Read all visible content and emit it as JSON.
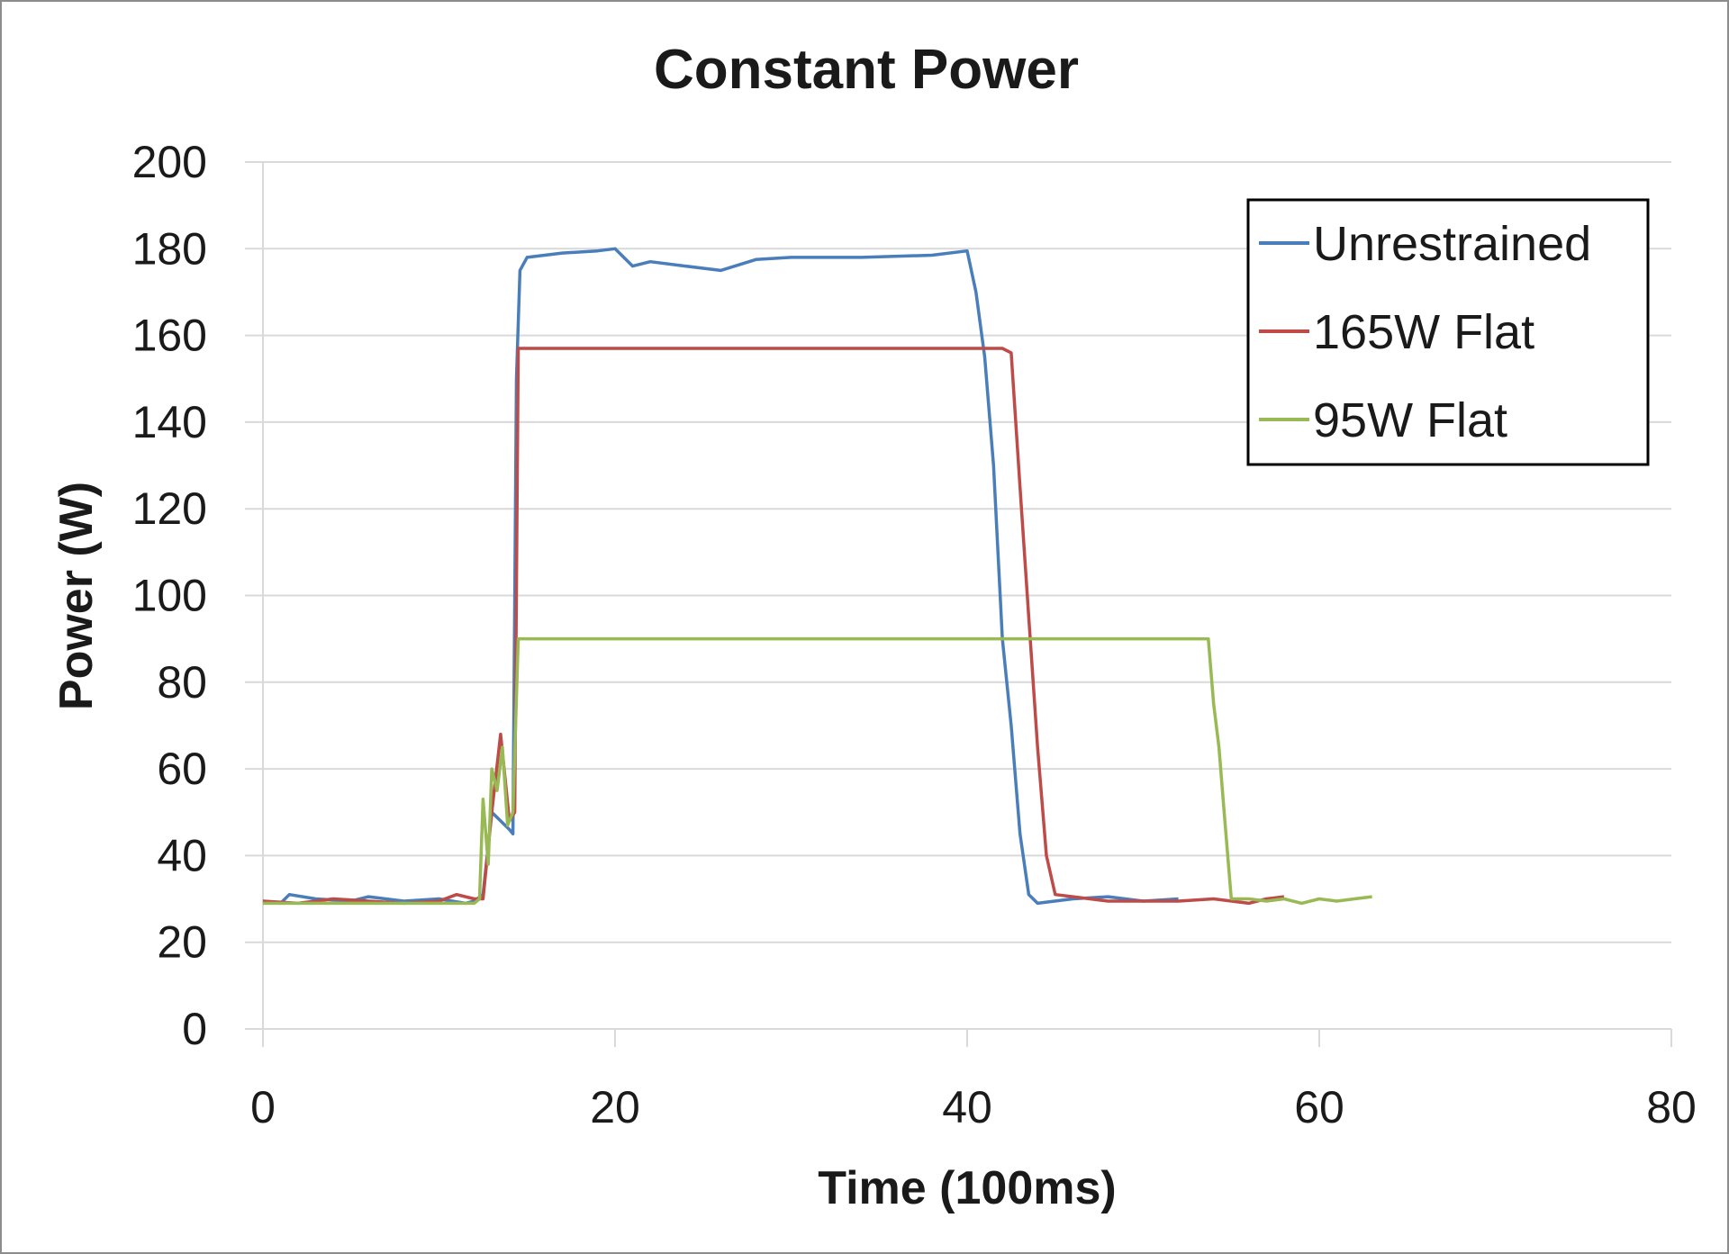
{
  "chart_data": {
    "type": "line",
    "title": "Constant Power",
    "xlabel": "Time (100ms)",
    "ylabel": "Power (W)",
    "xlim": [
      0,
      80
    ],
    "ylim": [
      0,
      200
    ],
    "xticks": [
      0,
      20,
      40,
      60,
      80
    ],
    "yticks": [
      0,
      20,
      40,
      60,
      80,
      100,
      120,
      140,
      160,
      180,
      200
    ],
    "grid": "horizontal",
    "legend_position": "top-right",
    "series": [
      {
        "name": "Unrestrained",
        "color": "#4a7ebb",
        "points": [
          [
            0,
            29.5
          ],
          [
            1,
            29
          ],
          [
            1.5,
            31
          ],
          [
            3,
            30
          ],
          [
            5,
            29.5
          ],
          [
            6,
            30.5
          ],
          [
            8,
            29.5
          ],
          [
            10,
            30
          ],
          [
            11.5,
            29
          ],
          [
            12,
            29.5
          ],
          [
            12.5,
            31
          ],
          [
            13,
            50
          ],
          [
            13.5,
            48
          ],
          [
            14,
            46
          ],
          [
            14.2,
            45
          ],
          [
            14.4,
            150
          ],
          [
            14.6,
            175
          ],
          [
            15,
            178
          ],
          [
            17,
            179
          ],
          [
            19,
            179.5
          ],
          [
            20,
            180
          ],
          [
            21,
            176
          ],
          [
            22,
            177
          ],
          [
            24,
            176
          ],
          [
            26,
            175
          ],
          [
            28,
            177.5
          ],
          [
            30,
            178
          ],
          [
            34,
            178
          ],
          [
            38,
            178.5
          ],
          [
            40,
            179.5
          ],
          [
            40.5,
            170
          ],
          [
            41,
            155
          ],
          [
            41.5,
            130
          ],
          [
            42,
            90
          ],
          [
            42.5,
            70
          ],
          [
            43,
            45
          ],
          [
            43.5,
            31
          ],
          [
            44,
            29
          ],
          [
            46,
            30
          ],
          [
            48,
            30.5
          ],
          [
            50,
            29.5
          ],
          [
            52,
            30
          ]
        ]
      },
      {
        "name": "165W Flat",
        "color": "#be4b48",
        "points": [
          [
            0,
            29.5
          ],
          [
            2,
            29
          ],
          [
            4,
            30
          ],
          [
            6,
            29.5
          ],
          [
            8,
            29
          ],
          [
            10,
            29.5
          ],
          [
            11,
            31
          ],
          [
            12,
            30
          ],
          [
            12.5,
            30
          ],
          [
            13,
            50
          ],
          [
            13.5,
            68
          ],
          [
            14,
            48
          ],
          [
            14.3,
            50
          ],
          [
            14.5,
            157
          ],
          [
            16,
            157
          ],
          [
            20,
            157
          ],
          [
            25,
            157
          ],
          [
            30,
            157
          ],
          [
            35,
            157
          ],
          [
            40,
            157
          ],
          [
            42,
            157
          ],
          [
            42.5,
            156
          ],
          [
            43,
            125
          ],
          [
            43.5,
            95
          ],
          [
            44,
            65
          ],
          [
            44.5,
            40
          ],
          [
            45,
            31
          ],
          [
            46,
            30.5
          ],
          [
            48,
            29.5
          ],
          [
            50,
            29.5
          ],
          [
            52,
            29.5
          ],
          [
            54,
            30
          ],
          [
            56,
            29
          ],
          [
            57,
            30
          ],
          [
            58,
            30.5
          ]
        ]
      },
      {
        "name": "95W Flat",
        "color": "#98b954",
        "points": [
          [
            0,
            29
          ],
          [
            2,
            29
          ],
          [
            4,
            29
          ],
          [
            6,
            29
          ],
          [
            8,
            29
          ],
          [
            10,
            29
          ],
          [
            11,
            29
          ],
          [
            12,
            29
          ],
          [
            12.3,
            30
          ],
          [
            12.5,
            53
          ],
          [
            12.8,
            38
          ],
          [
            13,
            60
          ],
          [
            13.3,
            55
          ],
          [
            13.6,
            65
          ],
          [
            13.9,
            47
          ],
          [
            14.2,
            50
          ],
          [
            14.5,
            90
          ],
          [
            16,
            90
          ],
          [
            20,
            90
          ],
          [
            25,
            90
          ],
          [
            30,
            90
          ],
          [
            35,
            90
          ],
          [
            40,
            90
          ],
          [
            45,
            90
          ],
          [
            50,
            90
          ],
          [
            53,
            90
          ],
          [
            53.7,
            90
          ],
          [
            54,
            75
          ],
          [
            54.3,
            65
          ],
          [
            54.6,
            50
          ],
          [
            55,
            30
          ],
          [
            56,
            30
          ],
          [
            57,
            29.5
          ],
          [
            58,
            30
          ],
          [
            59,
            29
          ],
          [
            60,
            30
          ],
          [
            61,
            29.5
          ],
          [
            62,
            30
          ],
          [
            63,
            30.5
          ]
        ]
      }
    ]
  }
}
